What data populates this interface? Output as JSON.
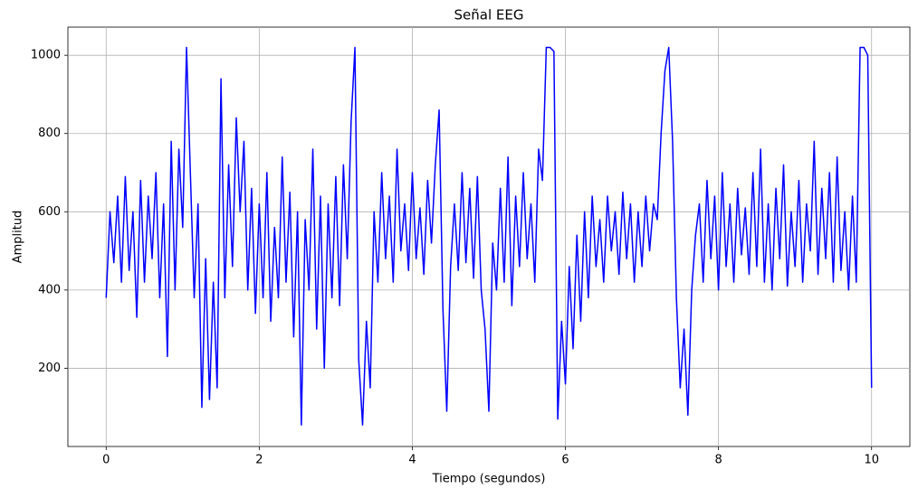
{
  "chart_data": {
    "type": "line",
    "title": "Señal EEG",
    "x_label": "Tiempo (segundos)",
    "y_label": "Amplitud",
    "color": "#0000ff",
    "grid": true,
    "xlim": [
      -0.5,
      10.5
    ],
    "xticks": [
      0,
      2,
      4,
      6,
      8,
      10
    ],
    "ylim": [
      0,
      1072
    ],
    "yticks": [
      200,
      400,
      600,
      800,
      1000
    ],
    "x": [
      0,
      0.05,
      0.1,
      0.15,
      0.2,
      0.25,
      0.3,
      0.35,
      0.4,
      0.45,
      0.5,
      0.55,
      0.6,
      0.65,
      0.7,
      0.75,
      0.8,
      0.85,
      0.9,
      0.95,
      1,
      1.05,
      1.1,
      1.15,
      1.2,
      1.25,
      1.3,
      1.35,
      1.4,
      1.45,
      1.5,
      1.55,
      1.6,
      1.65,
      1.7,
      1.75,
      1.8,
      1.85,
      1.9,
      1.95,
      2,
      2.05,
      2.1,
      2.15,
      2.2,
      2.25,
      2.3,
      2.35,
      2.4,
      2.45,
      2.5,
      2.55,
      2.6,
      2.65,
      2.7,
      2.75,
      2.8,
      2.85,
      2.9,
      2.95,
      3,
      3.05,
      3.1,
      3.15,
      3.2,
      3.25,
      3.3,
      3.35,
      3.4,
      3.45,
      3.5,
      3.55,
      3.6,
      3.65,
      3.7,
      3.75,
      3.8,
      3.85,
      3.9,
      3.95,
      4,
      4.05,
      4.1,
      4.15,
      4.2,
      4.25,
      4.3,
      4.35,
      4.4,
      4.45,
      4.5,
      4.55,
      4.6,
      4.65,
      4.7,
      4.75,
      4.8,
      4.85,
      4.9,
      4.95,
      5,
      5.05,
      5.1,
      5.15,
      5.2,
      5.25,
      5.3,
      5.35,
      5.4,
      5.45,
      5.5,
      5.55,
      5.6,
      5.65,
      5.7,
      5.75,
      5.8,
      5.85,
      5.9,
      5.95,
      6,
      6.05,
      6.1,
      6.15,
      6.2,
      6.25,
      6.3,
      6.35,
      6.4,
      6.45,
      6.5,
      6.55,
      6.6,
      6.65,
      6.7,
      6.75,
      6.8,
      6.85,
      6.9,
      6.95,
      7,
      7.05,
      7.1,
      7.15,
      7.2,
      7.25,
      7.3,
      7.35,
      7.4,
      7.45,
      7.5,
      7.55,
      7.6,
      7.65,
      7.7,
      7.75,
      7.8,
      7.85,
      7.9,
      7.95,
      8,
      8.05,
      8.1,
      8.15,
      8.2,
      8.25,
      8.3,
      8.35,
      8.4,
      8.45,
      8.5,
      8.55,
      8.6,
      8.65,
      8.7,
      8.75,
      8.8,
      8.85,
      8.9,
      8.95,
      9,
      9.05,
      9.1,
      9.15,
      9.2,
      9.25,
      9.3,
      9.35,
      9.4,
      9.45,
      9.5,
      9.55,
      9.6,
      9.65,
      9.7,
      9.75,
      9.8,
      9.85,
      9.9,
      9.95,
      10
    ],
    "values": [
      380,
      600,
      470,
      640,
      420,
      690,
      450,
      600,
      330,
      680,
      420,
      640,
      480,
      700,
      380,
      620,
      230,
      780,
      400,
      760,
      560,
      1020,
      700,
      380,
      620,
      100,
      480,
      120,
      420,
      150,
      940,
      380,
      720,
      460,
      840,
      600,
      780,
      400,
      660,
      340,
      620,
      380,
      700,
      320,
      560,
      380,
      740,
      420,
      650,
      280,
      600,
      55,
      580,
      400,
      760,
      300,
      640,
      200,
      620,
      380,
      690,
      360,
      720,
      480,
      830,
      1020,
      220,
      55,
      320,
      150,
      600,
      420,
      700,
      480,
      640,
      420,
      760,
      500,
      620,
      450,
      700,
      480,
      610,
      440,
      680,
      520,
      720,
      860,
      350,
      90,
      460,
      620,
      450,
      700,
      470,
      660,
      430,
      690,
      400,
      300,
      90,
      520,
      400,
      660,
      420,
      740,
      360,
      640,
      460,
      700,
      480,
      620,
      420,
      760,
      680,
      1020,
      1020,
      1010,
      70,
      320,
      160,
      460,
      250,
      540,
      320,
      600,
      380,
      640,
      460,
      580,
      420,
      640,
      500,
      600,
      440,
      650,
      480,
      620,
      420,
      600,
      460,
      640,
      500,
      620,
      580,
      800,
      960,
      1020,
      780,
      380,
      150,
      300,
      80,
      400,
      540,
      620,
      420,
      680,
      480,
      640,
      400,
      700,
      460,
      620,
      420,
      660,
      490,
      610,
      440,
      700,
      460,
      760,
      420,
      620,
      400,
      660,
      480,
      720,
      410,
      600,
      460,
      680,
      420,
      620,
      500,
      780,
      440,
      660,
      480,
      700,
      420,
      740,
      450,
      600,
      400,
      640,
      420,
      1020,
      1020,
      1000,
      150
    ]
  }
}
